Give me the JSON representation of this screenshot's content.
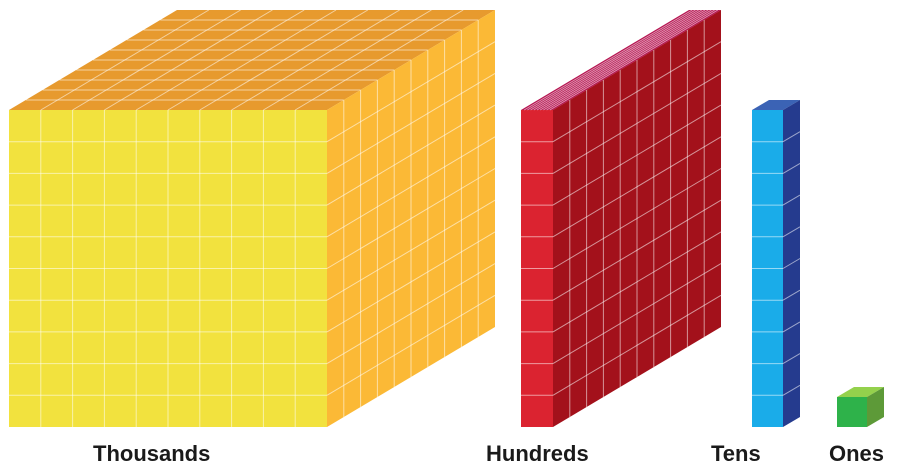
{
  "blocks": [
    {
      "id": "thousands",
      "label": "Thousands",
      "value": 1000,
      "front_grid": [
        10,
        10
      ],
      "top_grid": [
        10,
        10
      ],
      "side_grid": [
        10,
        10
      ],
      "colors": {
        "front": "#f2e23e",
        "top": "#e79a2e",
        "side": "#fbb936",
        "grid": "#ffffff"
      }
    },
    {
      "id": "hundreds",
      "label": "Hundreds",
      "value": 100,
      "front_grid": [
        1,
        10
      ],
      "top_grid": [
        10,
        1
      ],
      "side_grid": [
        10,
        10
      ],
      "colors": {
        "front": "#db2330",
        "top": "#b5124f",
        "side": "#a3111b",
        "grid": "#ffffff"
      }
    },
    {
      "id": "tens",
      "label": "Tens",
      "value": 10,
      "front_grid": [
        1,
        10
      ],
      "top_grid": [
        1,
        1
      ],
      "side_grid": [
        1,
        10
      ],
      "colors": {
        "front": "#1aace9",
        "top": "#3b63b5",
        "side": "#253b8e",
        "grid": "#ffffff"
      }
    },
    {
      "id": "ones",
      "label": "Ones",
      "value": 1,
      "front_grid": [
        1,
        1
      ],
      "top_grid": [
        1,
        1
      ],
      "side_grid": [
        1,
        1
      ],
      "colors": {
        "front": "#2eb24a",
        "top": "#94d14c",
        "side": "#5d9a38",
        "grid": "#ffffff"
      }
    }
  ]
}
